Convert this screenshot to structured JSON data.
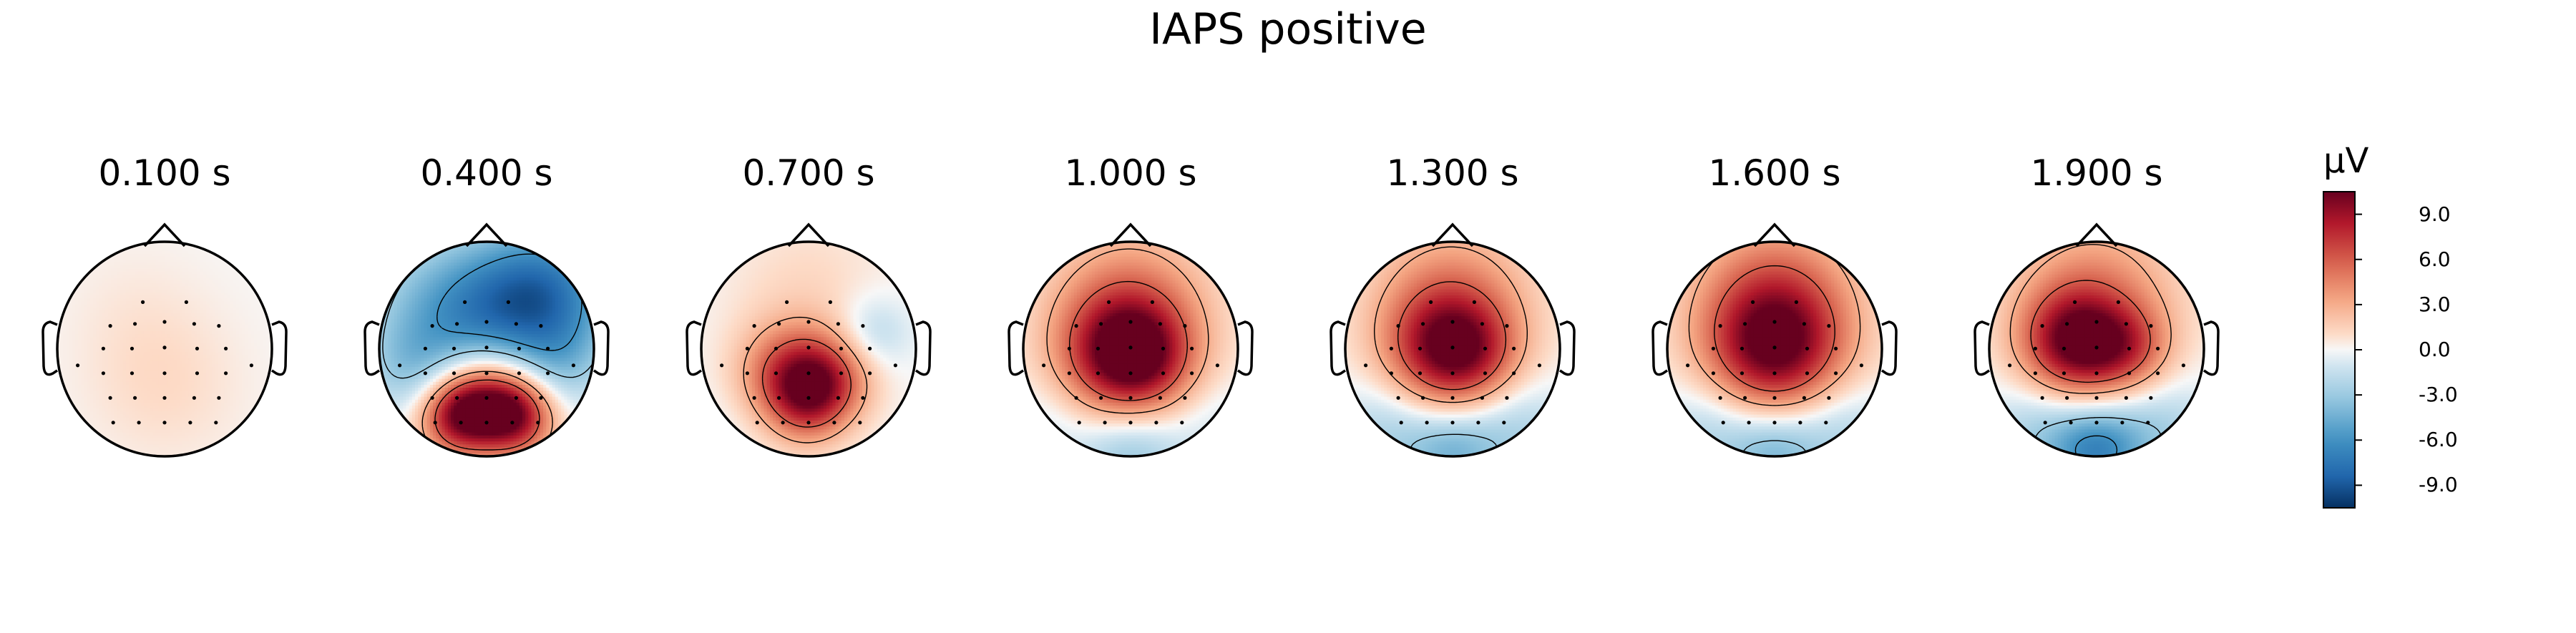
{
  "title": "IAPS positive",
  "chart_data": {
    "type": "heatmap",
    "title": "IAPS positive",
    "maps": [
      {
        "label": "0.100 s",
        "blobs": [
          [
            0.0,
            0.35,
            0.55,
            1.0
          ],
          [
            -0.3,
            -0.4,
            0.5,
            0.4
          ]
        ]
      },
      {
        "label": "0.400 s",
        "blobs": [
          [
            -0.25,
            0.62,
            0.26,
            9.5
          ],
          [
            0.25,
            0.62,
            0.26,
            9.5
          ],
          [
            0.0,
            0.35,
            0.3,
            4.0
          ],
          [
            0.55,
            -0.5,
            0.45,
            -7.0
          ],
          [
            -0.45,
            -0.3,
            0.5,
            -3.5
          ],
          [
            0.0,
            -0.35,
            0.45,
            -3.0
          ],
          [
            -0.7,
            0.2,
            0.3,
            -2.0
          ],
          [
            0.7,
            0.15,
            0.3,
            -2.0
          ]
        ]
      },
      {
        "label": "0.700 s",
        "blobs": [
          [
            -0.15,
            0.28,
            0.33,
            7.5
          ],
          [
            0.2,
            0.28,
            0.28,
            4.5
          ],
          [
            0.0,
            0.55,
            0.25,
            3.0
          ],
          [
            0.0,
            -0.5,
            0.55,
            1.2
          ],
          [
            0.6,
            -0.15,
            0.25,
            -2.2
          ],
          [
            -0.55,
            0.6,
            0.3,
            -0.6
          ]
        ]
      },
      {
        "label": "1.000 s",
        "blobs": [
          [
            -0.05,
            0.05,
            0.42,
            9.5
          ],
          [
            0.1,
            0.1,
            0.3,
            2.5
          ],
          [
            0.0,
            -0.45,
            0.55,
            3.5
          ],
          [
            0.0,
            0.95,
            0.35,
            -3.5
          ],
          [
            -0.75,
            0.65,
            0.3,
            -1.0
          ],
          [
            0.75,
            0.65,
            0.3,
            -1.0
          ]
        ]
      },
      {
        "label": "1.300 s",
        "blobs": [
          [
            -0.05,
            0.0,
            0.4,
            8.5
          ],
          [
            0.2,
            0.05,
            0.3,
            2.0
          ],
          [
            0.0,
            -0.5,
            0.55,
            3.5
          ],
          [
            0.0,
            0.95,
            0.3,
            -3.8
          ],
          [
            -0.6,
            0.75,
            0.35,
            -2.5
          ],
          [
            0.6,
            0.75,
            0.35,
            -2.5
          ]
        ]
      },
      {
        "label": "1.600 s",
        "blobs": [
          [
            0.0,
            0.0,
            0.45,
            9.0
          ],
          [
            0.0,
            -0.5,
            0.55,
            4.5
          ],
          [
            0.0,
            0.95,
            0.3,
            -3.8
          ],
          [
            -0.6,
            0.75,
            0.35,
            -2.5
          ],
          [
            0.6,
            0.75,
            0.35,
            -2.5
          ]
        ]
      },
      {
        "label": "1.900 s",
        "blobs": [
          [
            -0.2,
            -0.05,
            0.35,
            9.0
          ],
          [
            0.3,
            0.0,
            0.28,
            4.0
          ],
          [
            0.0,
            -0.5,
            0.55,
            4.0
          ],
          [
            0.0,
            0.95,
            0.3,
            -6.0
          ],
          [
            -0.55,
            0.75,
            0.35,
            -2.5
          ],
          [
            0.6,
            0.75,
            0.35,
            -2.5
          ]
        ]
      }
    ],
    "colorbar": {
      "label": "µV",
      "min": -10.5,
      "max": 10.5,
      "ticks": [
        "9.0",
        "6.0",
        "3.0",
        "0.0",
        "-3.0",
        "-6.0",
        "-9.0"
      ],
      "tick_values": [
        9,
        6,
        3,
        0,
        -3,
        -6,
        -9
      ],
      "colormap": "RdBu_r"
    },
    "contour_levels": [
      -6,
      -3,
      3,
      6
    ],
    "colors": {
      "line": "#000000",
      "sensor": "#000000"
    }
  }
}
